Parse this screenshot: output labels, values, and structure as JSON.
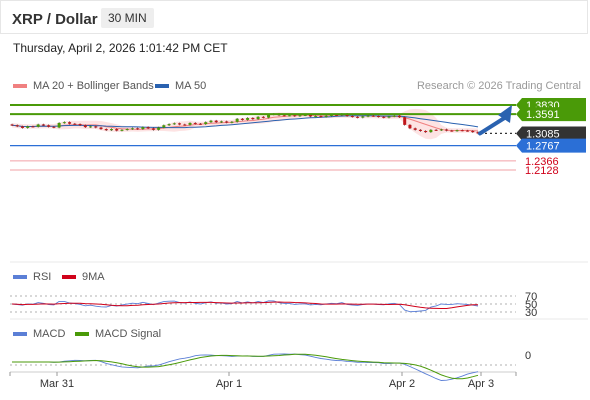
{
  "header": {
    "title": "XRP / Dollar",
    "timeframe": "30 MIN"
  },
  "datetime": "Thursday, April 2, 2026 1:01:42 PM CET",
  "legend": {
    "ma20": "MA 20 + Bollinger Bands",
    "ma50": "MA 50",
    "rsi": "RSI",
    "ma9": "9MA",
    "macd": "MACD",
    "macd_signal": "MACD Signal"
  },
  "credit": "Research © 2026 Trading Central",
  "colors": {
    "resistance": "#4a9a08",
    "support": "#2b6fd6",
    "last": "#333333",
    "minor": "#e8707a",
    "ma20": "#f08080",
    "ma50": "#2a62b0",
    "bands": "#fde3e3"
  },
  "chart_data": {
    "type": "candlestick",
    "instrument": "XRP / Dollar",
    "interval": "30 MIN",
    "xticks": [
      "Mar 31",
      "Apr 1",
      "Apr 2",
      "Apr 3"
    ],
    "price_levels": [
      {
        "label": "1.3830",
        "kind": "resistance",
        "color": "#4a9a08"
      },
      {
        "label": "1.3591",
        "kind": "resistance",
        "color": "#4a9a08"
      },
      {
        "label": "1.3085",
        "kind": "last",
        "color": "#333333"
      },
      {
        "label": "1.2767",
        "kind": "support",
        "color": "#2b6fd6"
      },
      {
        "label": "1.2366",
        "kind": "support-minor",
        "color": "#d0021b"
      },
      {
        "label": "1.2128",
        "kind": "support-minor",
        "color": "#d0021b"
      }
    ],
    "close_series": [
      1.33,
      1.327,
      1.323,
      1.327,
      1.326,
      1.332,
      1.33,
      1.326,
      1.324,
      1.336,
      1.338,
      1.334,
      1.333,
      1.33,
      1.325,
      1.327,
      1.324,
      1.32,
      1.317,
      1.32,
      1.316,
      1.318,
      1.32,
      1.322,
      1.32,
      1.325,
      1.322,
      1.318,
      1.324,
      1.33,
      1.333,
      1.335,
      1.332,
      1.331,
      1.336,
      1.334,
      1.333,
      1.338,
      1.342,
      1.338,
      1.34,
      1.337,
      1.339,
      1.347,
      1.344,
      1.349,
      1.346,
      1.352,
      1.35,
      1.358,
      1.36,
      1.356,
      1.355,
      1.356,
      1.354,
      1.356,
      1.357,
      1.353,
      1.354,
      1.352,
      1.355,
      1.357,
      1.356,
      1.36,
      1.354,
      1.352,
      1.35,
      1.353,
      1.355,
      1.354,
      1.352,
      1.35,
      1.353,
      1.355,
      1.351,
      1.331,
      1.322,
      1.318,
      1.315,
      1.312,
      1.318,
      1.317,
      1.319,
      1.316,
      1.315,
      1.317,
      1.316,
      1.315,
      1.312,
      1.3085
    ],
    "forecast_arrow": {
      "from": 1.3085,
      "to": 1.383
    },
    "rsi_levels": [
      70,
      50,
      30
    ],
    "macd_zero": "0"
  }
}
